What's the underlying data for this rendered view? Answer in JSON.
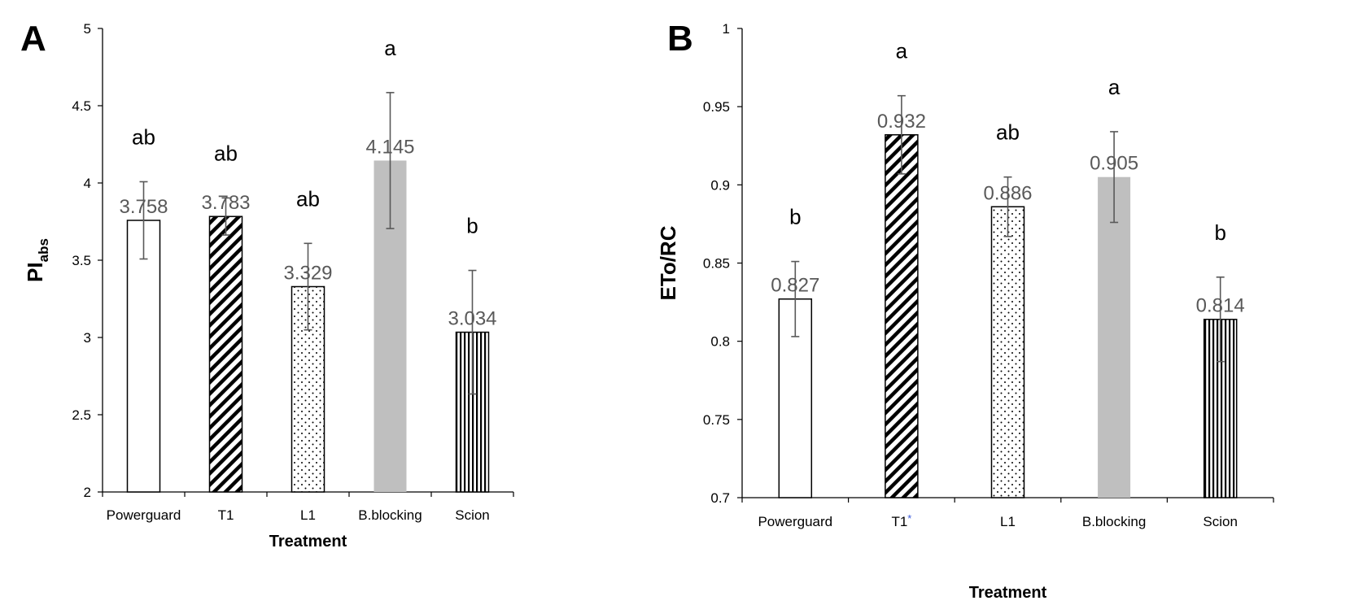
{
  "chart_data": [
    {
      "type": "bar",
      "panel_label": "A",
      "categories": [
        "Powerguard",
        "T1",
        "L1",
        "B.blocking",
        "Scion"
      ],
      "values": [
        3.758,
        3.783,
        3.329,
        4.145,
        3.034
      ],
      "data_labels": [
        "3.758",
        "3.783",
        "3.329",
        "4.145",
        "3.034"
      ],
      "error": [
        0.25,
        0.12,
        0.28,
        0.44,
        0.4
      ],
      "significance": [
        "ab",
        "ab",
        "ab",
        "a",
        "b"
      ],
      "patterns": [
        "none",
        "diagonal",
        "dots",
        "gray",
        "vertical"
      ],
      "ylabel_main": "PI",
      "ylabel_sub": "abs",
      "xlabel": "Treatment",
      "ylim": [
        2,
        5
      ],
      "yticks": [
        "2",
        "2.5",
        "3",
        "3.5",
        "4",
        "4.5",
        "5"
      ],
      "grid": false
    },
    {
      "type": "bar",
      "panel_label": "B",
      "categories": [
        "Powerguard",
        "T1",
        "L1",
        "B.blocking",
        "Scion"
      ],
      "category_marks": [
        "",
        "*",
        "",
        "",
        ""
      ],
      "values": [
        0.827,
        0.932,
        0.886,
        0.905,
        0.814
      ],
      "data_labels": [
        "0.827",
        "0.932",
        "0.886",
        "0.905",
        "0.814"
      ],
      "error": [
        0.024,
        0.025,
        0.019,
        0.029,
        0.027
      ],
      "significance": [
        "b",
        "a",
        "ab",
        "a",
        "b"
      ],
      "patterns": [
        "none",
        "diagonal",
        "dots",
        "gray",
        "vertical"
      ],
      "ylabel": "ETo/RC",
      "xlabel": "Treatment",
      "ylim": [
        0.7,
        1
      ],
      "yticks": [
        "0.7",
        "0.75",
        "0.8",
        "0.85",
        "0.9",
        "0.95",
        "1"
      ],
      "grid": false
    }
  ],
  "colors": {
    "gray_bar": "#bfbfbf",
    "axis": "#000000",
    "label_gray": "#595959",
    "error_bar": "#595959",
    "asterisk": "#3b5bdb"
  }
}
